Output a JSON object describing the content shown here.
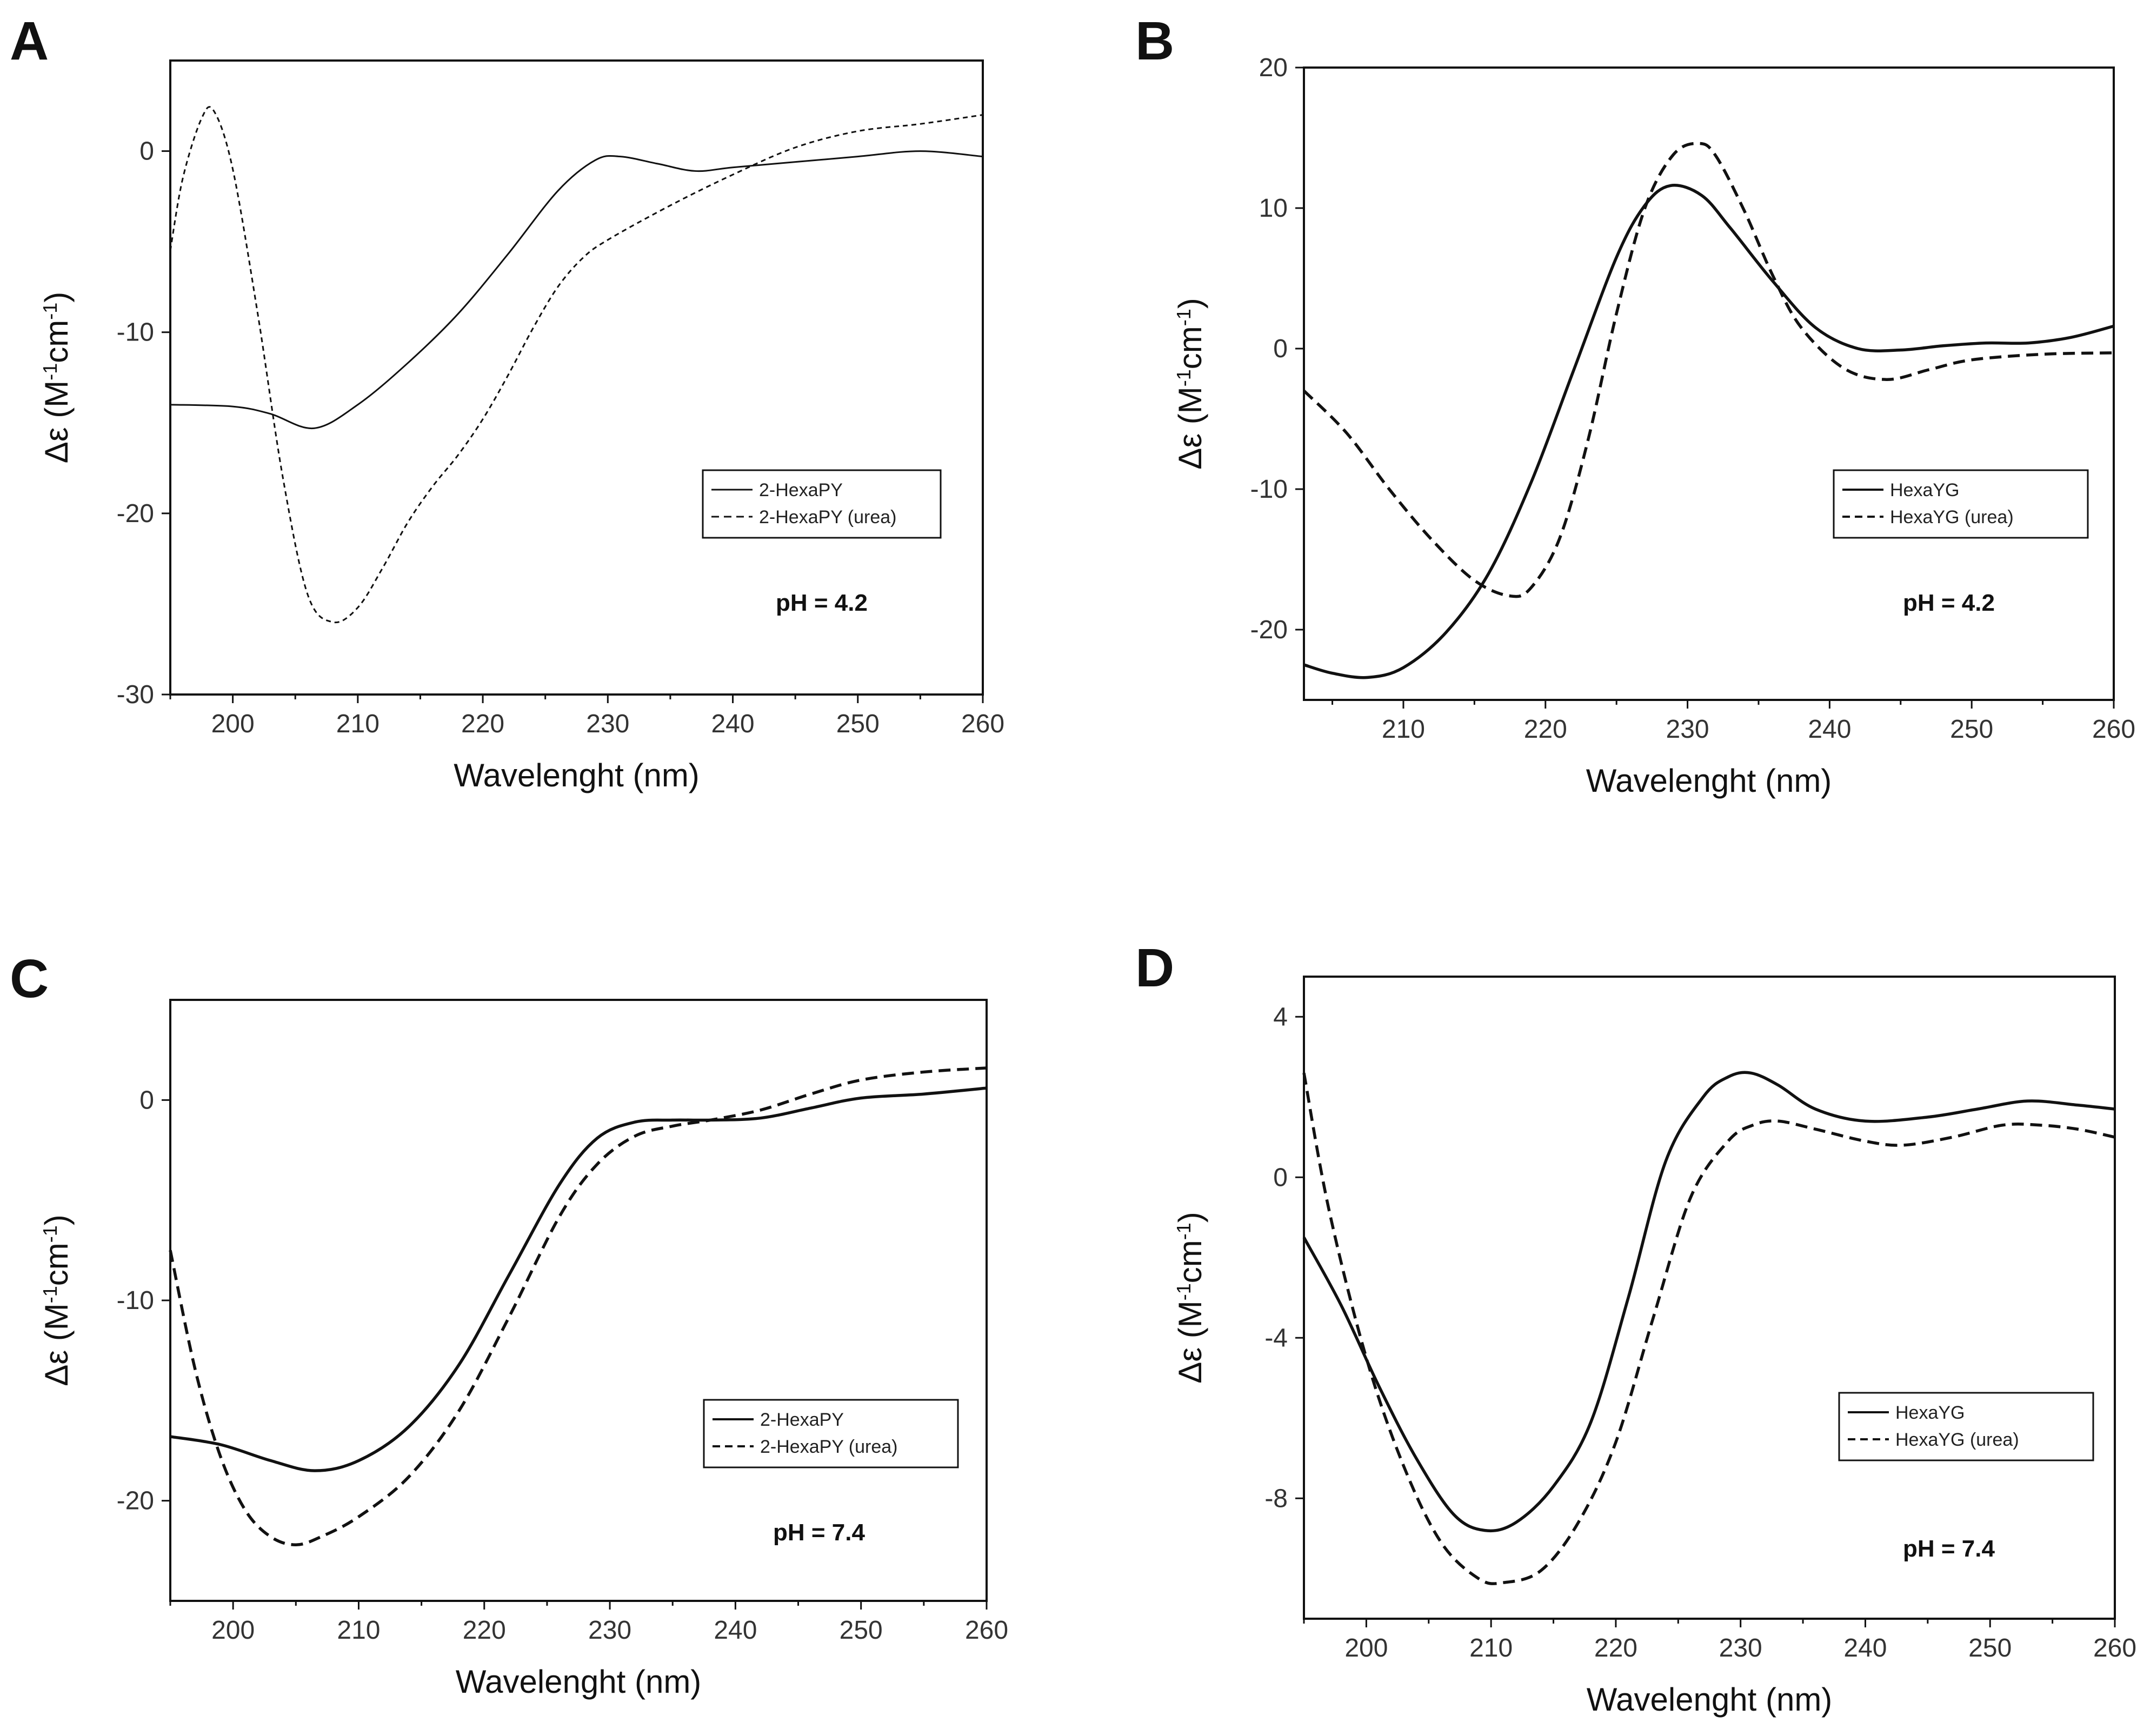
{
  "figure": {
    "panels": [
      "A",
      "B",
      "C",
      "D"
    ]
  },
  "chart_data": [
    {
      "panel": "A",
      "type": "line",
      "title": "",
      "xlabel": "Wavelenght (nm)",
      "ylabel_main": "Δε (M",
      "ylabel_sup1": "-1",
      "ylabel_mid": "cm",
      "ylabel_sup2": "-1",
      "ylabel_end": ")",
      "xlim": [
        195,
        260
      ],
      "ylim": [
        -30,
        5
      ],
      "xticks": [
        200,
        210,
        220,
        230,
        240,
        250,
        260
      ],
      "yticks": [
        0,
        -10,
        -20,
        -30
      ],
      "annotation": "pH = 4.2",
      "legend_position": "center-right",
      "series": [
        {
          "name": "2-HexaPY",
          "style": "solid",
          "x": [
            195,
            200,
            203,
            206.5,
            210,
            214,
            218,
            222,
            226,
            229,
            231,
            234,
            237,
            240,
            245,
            250,
            255,
            260
          ],
          "y": [
            -14,
            -14.1,
            -14.5,
            -15.3,
            -14.0,
            -11.7,
            -9.0,
            -5.7,
            -2.2,
            -0.5,
            -0.3,
            -0.7,
            -1.1,
            -0.9,
            -0.6,
            -0.3,
            0.0,
            -0.3
          ]
        },
        {
          "name": "2-HexaPY (urea)",
          "style": "dashed",
          "x": [
            195,
            196,
            197.5,
            198.5,
            200,
            202,
            204,
            206,
            208,
            210,
            212,
            214,
            216,
            218,
            220,
            222,
            224,
            226,
            228,
            230,
            235,
            240,
            245,
            250,
            255,
            260
          ],
          "y": [
            -5.5,
            -1.5,
            1.8,
            2.2,
            -1.0,
            -9.0,
            -18.0,
            -24.5,
            -26.0,
            -25.2,
            -23.0,
            -20.5,
            -18.5,
            -16.8,
            -14.8,
            -12.4,
            -9.8,
            -7.5,
            -5.9,
            -4.9,
            -3.0,
            -1.3,
            0.2,
            1.1,
            1.5,
            2.0
          ]
        }
      ]
    },
    {
      "panel": "B",
      "type": "line",
      "title": "",
      "xlabel": "Wavelenght (nm)",
      "ylabel_main": "Δε (M",
      "ylabel_sup1": "-1",
      "ylabel_mid": "cm",
      "ylabel_sup2": "-1",
      "ylabel_end": ")",
      "xlim": [
        203,
        260
      ],
      "ylim": [
        -25,
        20
      ],
      "xticks": [
        210,
        220,
        230,
        240,
        250,
        260
      ],
      "yticks": [
        20,
        10,
        0,
        -10,
        -20
      ],
      "annotation": "pH = 4.2",
      "legend_position": "center-right",
      "series": [
        {
          "name": "HexaYG",
          "style": "solid",
          "x": [
            203,
            205,
            207.5,
            210,
            213,
            216,
            219,
            222,
            225,
            227,
            228.8,
            231,
            233,
            236,
            239,
            242,
            245,
            248,
            251,
            254,
            257,
            260
          ],
          "y": [
            -22.5,
            -23.1,
            -23.4,
            -22.7,
            -20.2,
            -16.0,
            -9.5,
            -1.5,
            6.5,
            10.2,
            11.6,
            10.9,
            8.6,
            4.8,
            1.5,
            0.0,
            -0.1,
            0.2,
            0.4,
            0.4,
            0.8,
            1.6
          ]
        },
        {
          "name": "HexaYG (urea)",
          "style": "dashed",
          "x": [
            203,
            206,
            209,
            212,
            215,
            217.5,
            219,
            221,
            223,
            225,
            227,
            229,
            230.8,
            232,
            234,
            236,
            238,
            241,
            244,
            247,
            250,
            255,
            260
          ],
          "y": [
            -3.0,
            -6.0,
            -10.0,
            -13.6,
            -16.5,
            -17.6,
            -17.0,
            -13.5,
            -6.5,
            2.5,
            10.0,
            13.8,
            14.6,
            13.7,
            9.8,
            5.2,
            1.5,
            -1.4,
            -2.2,
            -1.5,
            -0.8,
            -0.4,
            -0.3
          ]
        }
      ]
    },
    {
      "panel": "C",
      "type": "line",
      "title": "",
      "xlabel": "Wavelenght (nm)",
      "ylabel_main": "Δε (M",
      "ylabel_sup1": "-1",
      "ylabel_mid": "cm",
      "ylabel_sup2": "-1",
      "ylabel_end": ")",
      "xlim": [
        195,
        260
      ],
      "ylim": [
        -25,
        5
      ],
      "xticks": [
        200,
        210,
        220,
        230,
        240,
        250,
        260
      ],
      "yticks": [
        0,
        -10,
        -20
      ],
      "annotation": "pH = 7.4",
      "legend_position": "center-right",
      "series": [
        {
          "name": "2-HexaPY",
          "style": "solid",
          "x": [
            195,
            199,
            203,
            206.5,
            210,
            214,
            218,
            222,
            226,
            229,
            232,
            235,
            238,
            242,
            246,
            250,
            255,
            260
          ],
          "y": [
            -16.8,
            -17.2,
            -18.0,
            -18.5,
            -18.0,
            -16.3,
            -13.2,
            -8.7,
            -4.2,
            -1.9,
            -1.1,
            -1.0,
            -1.0,
            -0.9,
            -0.4,
            0.1,
            0.3,
            0.6
          ]
        },
        {
          "name": "2-HexaPY (urea)",
          "style": "dashed",
          "x": [
            195,
            197,
            199,
            201,
            203,
            205,
            207,
            210,
            214,
            218,
            222,
            226,
            229,
            232,
            235,
            238,
            242,
            246,
            250,
            255,
            260
          ],
          "y": [
            -7.5,
            -13.5,
            -17.8,
            -20.5,
            -21.8,
            -22.2,
            -21.8,
            -20.8,
            -18.8,
            -15.5,
            -10.8,
            -5.8,
            -3.2,
            -1.8,
            -1.3,
            -1.0,
            -0.5,
            0.3,
            1.0,
            1.4,
            1.6
          ]
        }
      ]
    },
    {
      "panel": "D",
      "type": "line",
      "title": "",
      "xlabel": "Wavelenght (nm)",
      "ylabel_main": "Δε (M",
      "ylabel_sup1": "-1",
      "ylabel_mid": "cm",
      "ylabel_sup2": "-1",
      "ylabel_end": ")",
      "xlim": [
        195,
        260
      ],
      "ylim": [
        -11,
        5
      ],
      "xticks": [
        200,
        210,
        220,
        230,
        240,
        250,
        260
      ],
      "yticks": [
        4,
        0,
        -4,
        -8
      ],
      "annotation": "pH = 7.4",
      "legend_position": "center-right",
      "series": [
        {
          "name": "HexaYG",
          "style": "solid",
          "x": [
            195,
            198,
            201,
            204,
            207,
            209.5,
            212,
            215,
            218,
            221,
            224,
            227,
            229,
            230.8,
            233,
            236,
            240,
            245,
            249,
            253,
            257,
            260
          ],
          "y": [
            -1.5,
            -3.2,
            -5.2,
            -7.0,
            -8.4,
            -8.8,
            -8.6,
            -7.7,
            -6.1,
            -3.0,
            0.4,
            2.0,
            2.5,
            2.6,
            2.3,
            1.7,
            1.4,
            1.5,
            1.7,
            1.9,
            1.8,
            1.7
          ]
        },
        {
          "name": "HexaYG (urea)",
          "style": "dashed",
          "x": [
            195,
            197,
            200,
            203,
            206,
            209,
            211,
            214,
            217,
            220,
            223,
            226,
            229,
            231,
            233,
            236,
            240,
            243,
            247,
            251,
            254,
            257,
            260
          ],
          "y": [
            2.6,
            -0.8,
            -4.5,
            -7.2,
            -9.1,
            -10.0,
            -10.1,
            -9.8,
            -8.6,
            -6.6,
            -3.5,
            -0.5,
            0.9,
            1.3,
            1.4,
            1.2,
            0.9,
            0.8,
            1.0,
            1.3,
            1.3,
            1.2,
            1.0
          ]
        }
      ]
    }
  ]
}
